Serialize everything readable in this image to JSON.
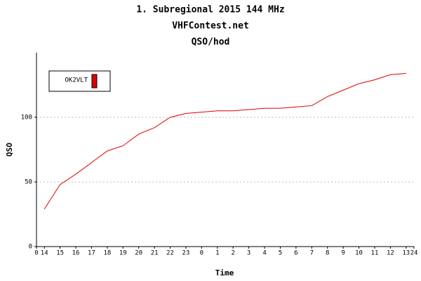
{
  "chart_data": {
    "type": "line",
    "title": "1. Subregional 2015 144 MHz",
    "subtitle": "VHFContest.net",
    "subtitle2": "QSO/hod",
    "x_label": "Time",
    "y_label": "QSO",
    "x": [
      0.5,
      1.5,
      2.5,
      3.5,
      4.5,
      5.5,
      6.5,
      7.5,
      8.5,
      9.5,
      10.5,
      11.5,
      12.5,
      13.5,
      14.5,
      15.5,
      16.5,
      17.5,
      18.5,
      19.5,
      20.5,
      21.5,
      22.5,
      23.5
    ],
    "series": [
      {
        "name": "OK2VLT",
        "color": "#dd0000",
        "values": [
          29,
          48,
          56,
          65,
          74,
          78,
          87,
          92,
          100,
          103,
          104,
          105,
          105,
          106,
          107,
          107,
          108,
          109,
          116,
          121,
          126,
          129,
          133,
          134
        ]
      }
    ],
    "xlim": [
      0,
      24
    ],
    "xticks": [
      0,
      {
        "value": 0.5,
        "label": "14"
      },
      {
        "value": 1.5,
        "label": "15"
      },
      {
        "value": 2.5,
        "label": "16"
      },
      {
        "value": 3.5,
        "label": "17"
      },
      {
        "value": 4.5,
        "label": "18"
      },
      {
        "value": 5.5,
        "label": "19"
      },
      {
        "value": 6.5,
        "label": "20"
      },
      {
        "value": 7.5,
        "label": "21"
      },
      {
        "value": 8.5,
        "label": "22"
      },
      {
        "value": 9.5,
        "label": "23"
      },
      {
        "value": 10.5,
        "label": "0"
      },
      {
        "value": 11.5,
        "label": "1"
      },
      {
        "value": 12.5,
        "label": "2"
      },
      {
        "value": 13.5,
        "label": "3"
      },
      {
        "value": 14.5,
        "label": "4"
      },
      {
        "value": 15.5,
        "label": "5"
      },
      {
        "value": 16.5,
        "label": "6"
      },
      {
        "value": 17.5,
        "label": "7"
      },
      {
        "value": 18.5,
        "label": "8"
      },
      {
        "value": 19.5,
        "label": "9"
      },
      {
        "value": 20.5,
        "label": "10"
      },
      {
        "value": 21.5,
        "label": "11"
      },
      {
        "value": 22.5,
        "label": "12"
      },
      {
        "value": 23.5,
        "label": "13"
      },
      24
    ],
    "ylim": [
      0,
      150
    ],
    "yticks": [
      0,
      50,
      100
    ],
    "grid": true,
    "legend": "upper left"
  }
}
